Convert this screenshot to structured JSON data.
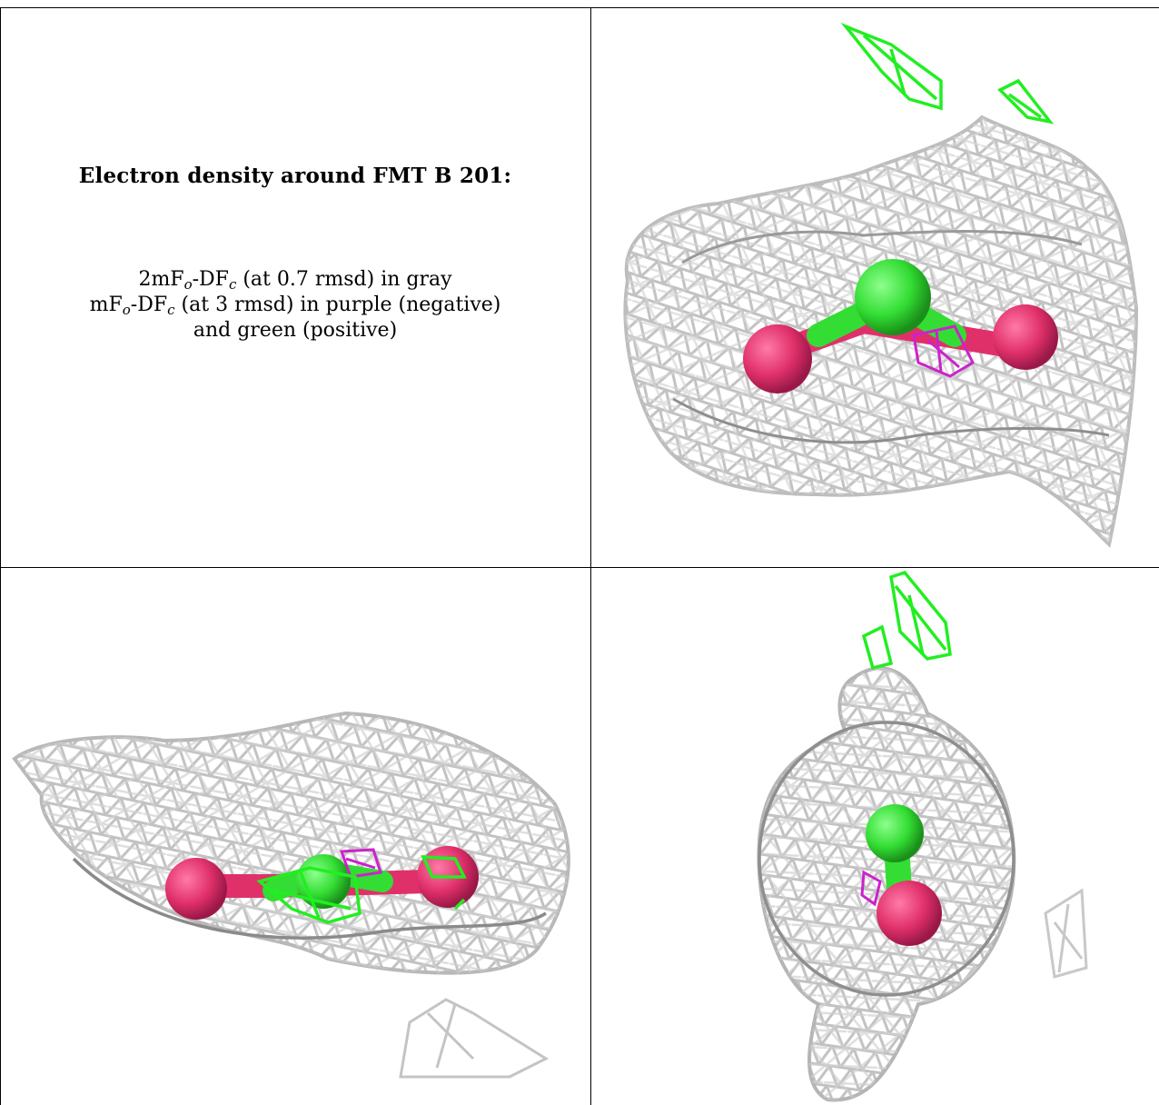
{
  "caption": {
    "title": "Electron density around FMT B 201:",
    "line1_prefix": "2mF",
    "line1_sub1": "o",
    "line1_mid": "-DF",
    "line1_sub2": "c",
    "line1_suffix": " (at 0.7 rmsd) in gray",
    "line2_prefix": "mF",
    "line2_sub1": "o",
    "line2_mid": "-DF",
    "line2_sub2": "c",
    "line2_suffix": " (at 3 rmsd) in purple (negative)",
    "line3": "and green (positive)"
  },
  "colors": {
    "mesh_gray": "#c8c8c8",
    "mesh_dark": "#8a8a8a",
    "positive_green": "#22ee22",
    "negative_purple": "#cc22cc",
    "oxygen_pink": "#e0306a",
    "carbon_green": "#33dd33"
  },
  "panels": [
    {
      "name": "view-top-right"
    },
    {
      "name": "view-bottom-left"
    },
    {
      "name": "view-bottom-right"
    }
  ]
}
